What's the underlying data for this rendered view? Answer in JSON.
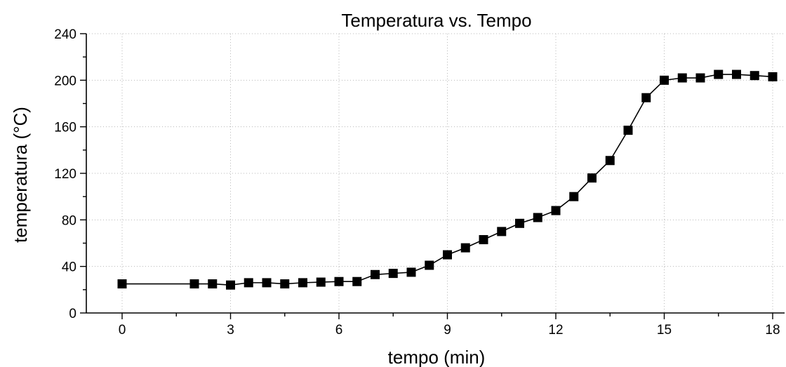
{
  "chart_data": {
    "type": "line",
    "title": "Temperatura vs. Tempo",
    "xlabel": "tempo (min)",
    "ylabel": "temperatura (°C)",
    "xlim": [
      -1,
      18.1
    ],
    "ylim": [
      0,
      240
    ],
    "xticks": [
      0,
      3,
      6,
      9,
      12,
      15,
      18
    ],
    "yticks": [
      0,
      40,
      80,
      120,
      160,
      200,
      240
    ],
    "grid": true,
    "marker": "square",
    "line_color": "#000000",
    "series": [
      {
        "x": [
          0,
          2,
          2.5,
          3,
          3.5,
          4,
          4.5,
          5,
          5.5,
          6,
          6.5,
          7,
          7.5,
          8,
          8.5,
          9,
          9.5,
          10,
          10.5,
          11,
          11.5,
          12,
          12.5,
          13,
          13.5,
          14,
          14.5,
          15,
          15.5,
          16,
          16.5,
          17,
          17.5,
          18
        ],
        "y": [
          25,
          25,
          25,
          24,
          26,
          26,
          25,
          26,
          26.5,
          27,
          27,
          33,
          34,
          35,
          41,
          50,
          56,
          63,
          70,
          77,
          82,
          88,
          100,
          116,
          131,
          157,
          185,
          200,
          202,
          202,
          205,
          205,
          204,
          203
        ]
      }
    ]
  }
}
